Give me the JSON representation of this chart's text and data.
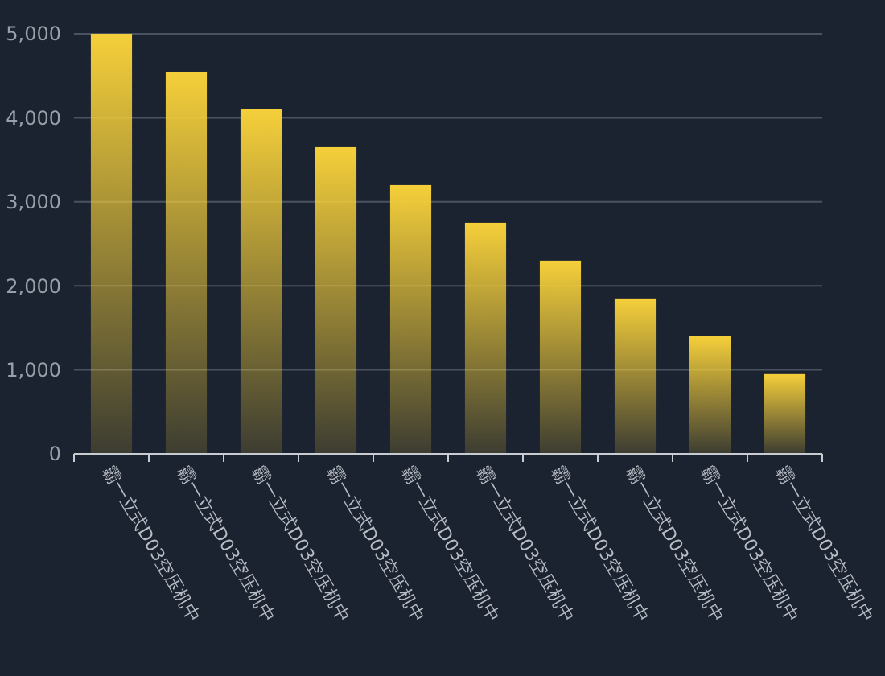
{
  "chart_data": {
    "type": "bar",
    "categories": [
      "霸一立式D03空压机中",
      "霸一立式D03空压机中",
      "霸一立式D03空压机中",
      "霸一立式D03空压机中",
      "霸一立式D03空压机中",
      "霸一立式D03空压机中",
      "霸一立式D03空压机中",
      "霸一立式D03空压机中",
      "霸一立式D03空压机中",
      "霸一立式D03空压机中"
    ],
    "values": [
      5000,
      4550,
      4100,
      3650,
      3200,
      2750,
      2300,
      1850,
      1400,
      950
    ],
    "color": "#f5cf3a",
    "ylim": [
      0,
      5000
    ],
    "yticks": [
      {
        "value": 0,
        "label": "0"
      },
      {
        "value": 1000,
        "label": "1,000"
      },
      {
        "value": 2000,
        "label": "2,000"
      },
      {
        "value": 3000,
        "label": "3,000"
      },
      {
        "value": 4000,
        "label": "4,000"
      },
      {
        "value": 5000,
        "label": "5,000"
      }
    ],
    "grid": "y"
  }
}
